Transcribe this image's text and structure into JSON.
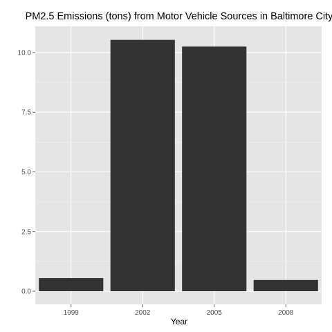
{
  "chart_data": {
    "type": "bar",
    "title": "PM2.5 Emissions (tons) from Motor Vehicle Sources in Baltimore City",
    "xlabel": "Year",
    "ylabel": "",
    "categories": [
      "1999",
      "2002",
      "2005",
      "2008"
    ],
    "values": [
      0.55,
      10.53,
      10.25,
      0.47
    ],
    "ylim": [
      -0.55,
      11.1
    ],
    "yticks": [
      0.0,
      2.5,
      5.0,
      7.5,
      10.0
    ],
    "ytick_labels": [
      "0.0",
      "2.5",
      "5.0",
      "7.5",
      "10.0"
    ],
    "grid": true,
    "legend": "none",
    "colors": {
      "panel": "#e5e5e5",
      "grid_major": "#ffffff",
      "grid_minor": "#f2f2f2",
      "bar": "#333333",
      "tick_text": "#4d4d4d",
      "tick_mark": "#333333"
    }
  }
}
